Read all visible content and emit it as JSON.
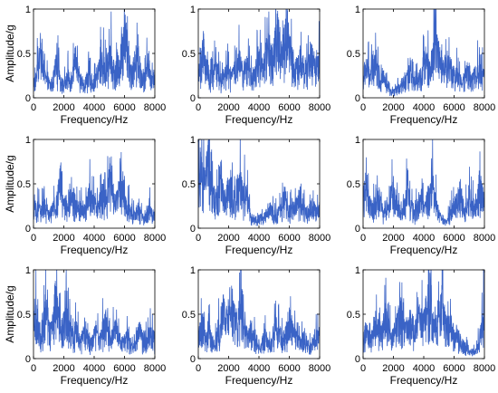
{
  "colors": {
    "signal": "#3a63c6",
    "axis": "#000000",
    "background": "#ffffff"
  },
  "chart_data": [
    {
      "type": "line",
      "xlabel": "Frequency/Hz",
      "ylabel": "Amplitude/g",
      "xlim": [
        0,
        8000
      ],
      "ylim": [
        0,
        1
      ],
      "xticks": [
        "0",
        "2000",
        "4000",
        "6000",
        "8000"
      ],
      "yticks": [
        "0",
        "0.5",
        "1"
      ],
      "grid": false,
      "series": [
        {
          "values": [
            0.25,
            0.3,
            0.55,
            0.7,
            0.4,
            0.3,
            0.25,
            0.2,
            0.3,
            0.5,
            0.45,
            0.3,
            0.2,
            0.25,
            0.35,
            0.3,
            0.45,
            0.6,
            0.4,
            0.3,
            0.2,
            0.25,
            0.35,
            0.3,
            0.25,
            0.3,
            0.4,
            0.6,
            0.55,
            0.45,
            0.55,
            0.7,
            0.5,
            0.4,
            0.45,
            0.55,
            0.85,
            1.0,
            0.7,
            0.5,
            0.45,
            0.55,
            0.7,
            0.5,
            0.35,
            0.3,
            0.55,
            0.4,
            0.3,
            0.35
          ]
        }
      ]
    },
    {
      "type": "line",
      "xlabel": "Frequency/Hz",
      "ylabel": "",
      "xlim": [
        0,
        8000
      ],
      "ylim": [
        0,
        1
      ],
      "xticks": [
        "0",
        "2000",
        "4000",
        "6000",
        "8000"
      ],
      "yticks": [
        "0",
        "0.5",
        "1"
      ],
      "grid": false,
      "series": [
        {
          "values": [
            0.3,
            0.55,
            0.8,
            0.6,
            0.4,
            0.3,
            0.35,
            0.55,
            0.4,
            0.3,
            0.25,
            0.45,
            0.4,
            0.3,
            0.35,
            0.5,
            0.7,
            0.5,
            0.4,
            0.45,
            0.55,
            0.35,
            0.3,
            0.4,
            0.6,
            0.55,
            0.45,
            0.6,
            0.85,
            0.7,
            0.6,
            0.95,
            1.0,
            0.8,
            0.7,
            0.9,
            1.0,
            0.75,
            0.6,
            0.5,
            0.45,
            0.6,
            0.55,
            0.4,
            0.5,
            0.7,
            0.6,
            0.45,
            0.5,
            0.6
          ]
        }
      ]
    },
    {
      "type": "line",
      "xlabel": "Frequency/Hz",
      "ylabel": "",
      "xlim": [
        0,
        8000
      ],
      "ylim": [
        0,
        1
      ],
      "xticks": [
        "0",
        "2000",
        "4000",
        "6000",
        "8000"
      ],
      "yticks": [
        "0",
        "0.5",
        "1"
      ],
      "grid": false,
      "series": [
        {
          "values": [
            0.3,
            0.5,
            0.45,
            0.35,
            0.55,
            0.75,
            0.4,
            0.3,
            0.35,
            0.25,
            0.15,
            0.1,
            0.08,
            0.12,
            0.15,
            0.2,
            0.25,
            0.3,
            0.35,
            0.4,
            0.3,
            0.25,
            0.3,
            0.35,
            0.45,
            0.6,
            0.55,
            0.45,
            0.6,
            0.95,
            0.75,
            0.6,
            0.5,
            0.45,
            0.55,
            0.5,
            0.4,
            0.35,
            0.4,
            0.3,
            0.25,
            0.3,
            0.45,
            0.4,
            0.3,
            0.35,
            0.4,
            0.5,
            0.45,
            0.35
          ]
        }
      ]
    },
    {
      "type": "line",
      "xlabel": "Frequency/Hz",
      "ylabel": "Amplitude/g",
      "xlim": [
        0,
        8000
      ],
      "ylim": [
        0,
        1
      ],
      "xticks": [
        "0",
        "2000",
        "4000",
        "6000",
        "8000"
      ],
      "yticks": [
        "0",
        "0.5",
        "1"
      ],
      "grid": false,
      "series": [
        {
          "values": [
            0.2,
            0.35,
            0.3,
            0.25,
            0.45,
            0.3,
            0.2,
            0.25,
            0.35,
            0.3,
            0.55,
            0.8,
            0.45,
            0.35,
            0.3,
            0.4,
            0.5,
            0.4,
            0.3,
            0.35,
            0.25,
            0.3,
            0.45,
            0.6,
            0.4,
            0.35,
            0.3,
            0.45,
            0.55,
            0.4,
            0.6,
            0.9,
            0.55,
            0.4,
            0.5,
            0.8,
            0.55,
            0.4,
            0.3,
            0.35,
            0.25,
            0.2,
            0.3,
            0.25,
            0.2,
            0.15,
            0.25,
            0.3,
            0.2,
            0.25
          ]
        }
      ]
    },
    {
      "type": "line",
      "xlabel": "Frequency/Hz",
      "ylabel": "",
      "xlim": [
        0,
        8000
      ],
      "ylim": [
        0,
        1
      ],
      "xticks": [
        "0",
        "2000",
        "4000",
        "6000",
        "8000"
      ],
      "yticks": [
        "0",
        "0.5",
        "1"
      ],
      "grid": false,
      "series": [
        {
          "values": [
            1.0,
            0.9,
            0.7,
            0.85,
            1.0,
            0.7,
            0.5,
            0.45,
            0.6,
            0.8,
            0.55,
            0.45,
            0.6,
            0.7,
            0.5,
            0.55,
            0.75,
            0.7,
            0.5,
            0.6,
            0.45,
            0.2,
            0.1,
            0.15,
            0.12,
            0.2,
            0.15,
            0.2,
            0.25,
            0.3,
            0.25,
            0.2,
            0.25,
            0.3,
            0.4,
            0.5,
            0.3,
            0.25,
            0.35,
            0.3,
            0.4,
            0.5,
            0.35,
            0.3,
            0.25,
            0.3,
            0.35,
            0.3,
            0.25,
            0.3
          ]
        }
      ]
    },
    {
      "type": "line",
      "xlabel": "Frequency/Hz",
      "ylabel": "",
      "xlim": [
        0,
        8000
      ],
      "ylim": [
        0,
        1
      ],
      "xticks": [
        "0",
        "2000",
        "4000",
        "6000",
        "8000"
      ],
      "yticks": [
        "0",
        "0.5",
        "1"
      ],
      "grid": false,
      "series": [
        {
          "values": [
            0.5,
            0.65,
            0.45,
            0.35,
            0.3,
            0.4,
            0.55,
            0.4,
            0.25,
            0.2,
            0.25,
            0.4,
            0.65,
            0.5,
            0.35,
            0.25,
            0.3,
            0.45,
            0.55,
            0.35,
            0.3,
            0.25,
            0.35,
            0.5,
            0.4,
            0.3,
            0.45,
            0.6,
            0.75,
            0.5,
            0.3,
            0.2,
            0.15,
            0.1,
            0.15,
            0.2,
            0.3,
            0.35,
            0.45,
            0.5,
            0.4,
            0.3,
            0.35,
            0.45,
            0.4,
            0.3,
            0.5,
            0.7,
            0.55,
            0.4
          ]
        }
      ]
    },
    {
      "type": "line",
      "xlabel": "Frequency/Hz",
      "ylabel": "Amplitude/g",
      "xlim": [
        0,
        8000
      ],
      "ylim": [
        0,
        1
      ],
      "xticks": [
        "0",
        "2000",
        "4000",
        "6000",
        "8000"
      ],
      "yticks": [
        "0",
        "0.5",
        "1"
      ],
      "grid": false,
      "series": [
        {
          "values": [
            0.5,
            0.7,
            0.5,
            0.4,
            0.6,
            0.8,
            0.55,
            0.45,
            0.7,
            0.95,
            0.6,
            0.45,
            0.5,
            0.7,
            0.55,
            0.4,
            0.35,
            0.5,
            0.4,
            0.3,
            0.35,
            0.45,
            0.3,
            0.25,
            0.3,
            0.4,
            0.35,
            0.3,
            0.45,
            0.6,
            0.4,
            0.3,
            0.35,
            0.5,
            0.4,
            0.3,
            0.25,
            0.3,
            0.35,
            0.25,
            0.2,
            0.25,
            0.35,
            0.45,
            0.3,
            0.25,
            0.3,
            0.4,
            0.35,
            0.3
          ]
        }
      ]
    },
    {
      "type": "line",
      "xlabel": "Frequency/Hz",
      "ylabel": "",
      "xlim": [
        0,
        8000
      ],
      "ylim": [
        0,
        1
      ],
      "xticks": [
        "0",
        "2000",
        "4000",
        "6000",
        "8000"
      ],
      "yticks": [
        "0",
        "0.5",
        "1"
      ],
      "grid": false,
      "series": [
        {
          "values": [
            0.35,
            0.5,
            0.4,
            0.3,
            0.45,
            0.35,
            0.25,
            0.3,
            0.45,
            0.6,
            0.85,
            0.6,
            0.7,
            0.95,
            0.75,
            0.55,
            0.65,
            0.8,
            0.55,
            0.4,
            0.35,
            0.45,
            0.35,
            0.3,
            0.25,
            0.2,
            0.3,
            0.35,
            0.25,
            0.2,
            0.3,
            0.45,
            0.5,
            0.4,
            0.3,
            0.35,
            0.5,
            0.65,
            0.45,
            0.35,
            0.3,
            0.25,
            0.3,
            0.35,
            0.25,
            0.2,
            0.25,
            0.3,
            0.35,
            0.3
          ]
        }
      ]
    },
    {
      "type": "line",
      "xlabel": "Frequency/Hz",
      "ylabel": "",
      "xlim": [
        0,
        8000
      ],
      "ylim": [
        0,
        1
      ],
      "xticks": [
        "0",
        "2000",
        "4000",
        "6000",
        "8000"
      ],
      "yticks": [
        "0",
        "0.5",
        "1"
      ],
      "grid": false,
      "series": [
        {
          "values": [
            0.3,
            0.45,
            0.35,
            0.3,
            0.4,
            0.55,
            0.45,
            0.35,
            0.5,
            0.65,
            0.5,
            0.4,
            0.35,
            0.45,
            0.6,
            0.75,
            0.55,
            0.45,
            0.5,
            0.6,
            0.5,
            0.45,
            0.55,
            0.7,
            0.6,
            0.65,
            0.85,
            1.0,
            0.75,
            0.6,
            0.55,
            0.7,
            0.9,
            0.6,
            0.5,
            0.55,
            0.45,
            0.35,
            0.4,
            0.3,
            0.25,
            0.2,
            0.15,
            0.1,
            0.12,
            0.1,
            0.15,
            0.3,
            0.55,
            0.8
          ]
        }
      ]
    }
  ]
}
